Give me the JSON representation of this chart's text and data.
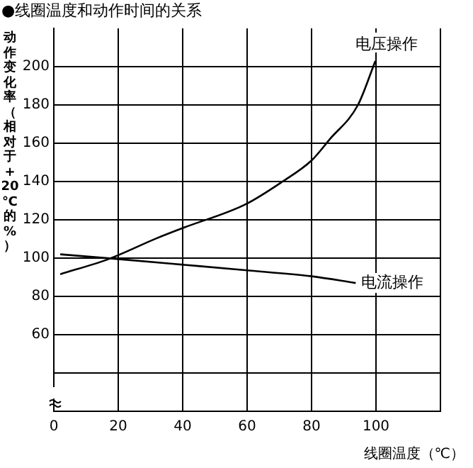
{
  "chart_data": {
    "type": "line",
    "title": "●线圈温度和动作时间的关系",
    "xlabel": "线圈温度（℃）",
    "ylabel": "动作变化率（相对于+20℃的%）",
    "series": [
      {
        "name": "电压操作",
        "color": "#000000",
        "x": [
          2,
          17,
          32,
          40.5,
          59.4,
          71,
          80,
          85.6,
          94.4,
          99.8
        ],
        "values": [
          91.6,
          99.5,
          110.4,
          116,
          128,
          140,
          151,
          162,
          180,
          203
        ]
      },
      {
        "name": "电流操作",
        "color": "#000000",
        "x": [
          2,
          20,
          40.5,
          59.4,
          80,
          93.7
        ],
        "values": [
          102,
          99.5,
          96.5,
          93.7,
          90.5,
          87
        ]
      }
    ],
    "xlim": [
      0,
      120
    ],
    "xticks": [
      0,
      20,
      40,
      60,
      80,
      100,
      {
        "value": 120,
        "label": null
      }
    ],
    "ylim": [
      20,
      220
    ],
    "yticks": [
      {
        "value": 40,
        "label": null
      },
      60,
      80,
      100,
      120,
      140,
      160,
      180,
      200
    ],
    "grid": true,
    "legend": false,
    "marker": "none",
    "line_style": "solid"
  }
}
